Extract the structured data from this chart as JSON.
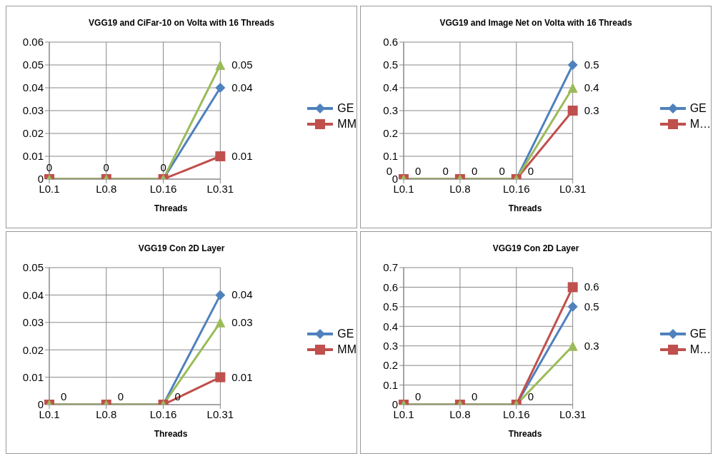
{
  "chart_data": [
    {
      "type": "line",
      "title": "VGG19 and CiFar-10 on Volta with 16 Threads",
      "xlabel": "Threads",
      "categories": [
        "L0.1",
        "L0.8",
        "L0.16",
        "L0.31"
      ],
      "ylim": [
        0,
        0.06
      ],
      "yticks": [
        0,
        0.01,
        0.02,
        0.03,
        0.04,
        0.05,
        0.06
      ],
      "grid": true,
      "legend": "right",
      "series": [
        {
          "name": "GE",
          "color": "#4f81bd",
          "marker": "diamond",
          "values": [
            0,
            0,
            0,
            0.04
          ],
          "value_labels": [
            null,
            null,
            null,
            "0.04"
          ]
        },
        {
          "name": "MM",
          "color": "#c0504d",
          "marker": "square",
          "values": [
            0,
            0,
            0,
            0.01
          ],
          "value_labels": [
            null,
            null,
            null,
            "0.01"
          ]
        },
        {
          "color": "#9bbb59",
          "marker": "triangle",
          "values": [
            0,
            0,
            0,
            0.05
          ],
          "value_labels": [
            "0",
            "0",
            "0",
            "0.05"
          ]
        }
      ]
    },
    {
      "type": "line",
      "title": "VGG19 and Image Net on Volta with 16 Threads",
      "xlabel": "Threads",
      "categories": [
        "L0.1",
        "L0.8",
        "L0.16",
        "L0.31"
      ],
      "ylim": [
        0,
        0.6
      ],
      "yticks": [
        0,
        0.1,
        0.2,
        0.3,
        0.4,
        0.5,
        0.6
      ],
      "grid": true,
      "legend": "right",
      "series": [
        {
          "name": "GE",
          "color": "#4f81bd",
          "marker": "diamond",
          "values": [
            0,
            0,
            0,
            0.5
          ],
          "value_labels": [
            "0",
            "0",
            "0",
            "0.5"
          ]
        },
        {
          "name": "M…",
          "color": "#c0504d",
          "marker": "square",
          "values": [
            0,
            0,
            0,
            0.3
          ],
          "value_labels": [
            "0",
            "0",
            "0",
            "0.3"
          ]
        },
        {
          "color": "#9bbb59",
          "marker": "triangle",
          "values": [
            0,
            0,
            0,
            0.4
          ],
          "value_labels": [
            null,
            null,
            null,
            "0.4"
          ]
        }
      ]
    },
    {
      "type": "line",
      "title": "VGG19 Con 2D Layer",
      "xlabel": "Threads",
      "categories": [
        "L0.1",
        "L0.8",
        "L0.16",
        "L0.31"
      ],
      "ylim": [
        0,
        0.05
      ],
      "yticks": [
        0,
        0.01,
        0.02,
        0.03,
        0.04,
        0.05
      ],
      "grid": true,
      "legend": "right",
      "series": [
        {
          "name": "GE",
          "color": "#4f81bd",
          "marker": "diamond",
          "values": [
            0,
            0,
            0,
            0.04
          ],
          "value_labels": [
            "0",
            "0",
            "0",
            "0.04"
          ]
        },
        {
          "name": "MM",
          "color": "#c0504d",
          "marker": "square",
          "values": [
            0,
            0,
            0,
            0.01
          ],
          "value_labels": [
            null,
            null,
            null,
            "0.01"
          ]
        },
        {
          "color": "#9bbb59",
          "marker": "triangle",
          "values": [
            0,
            0,
            0,
            0.03
          ],
          "value_labels": [
            null,
            null,
            null,
            "0.03"
          ]
        }
      ]
    },
    {
      "type": "line",
      "title": "VGG19 Con 2D Layer",
      "xlabel": "Threads",
      "categories": [
        "L0.1",
        "L0.8",
        "L0.16",
        "L0.31"
      ],
      "ylim": [
        0,
        0.7
      ],
      "yticks": [
        0,
        0.1,
        0.2,
        0.3,
        0.4,
        0.5,
        0.6,
        0.7
      ],
      "grid": true,
      "legend": "right",
      "series": [
        {
          "name": "GE",
          "color": "#4f81bd",
          "marker": "diamond",
          "values": [
            0,
            0,
            0,
            0.5
          ],
          "value_labels": [
            "0",
            "0",
            "0",
            "0.5"
          ]
        },
        {
          "name": "M…",
          "color": "#c0504d",
          "marker": "square",
          "values": [
            0,
            0,
            0,
            0.6
          ],
          "value_labels": [
            null,
            null,
            null,
            "0.6"
          ]
        },
        {
          "color": "#9bbb59",
          "marker": "triangle",
          "values": [
            0,
            0,
            0,
            0.3
          ],
          "value_labels": [
            null,
            null,
            null,
            "0.3"
          ]
        }
      ]
    }
  ]
}
